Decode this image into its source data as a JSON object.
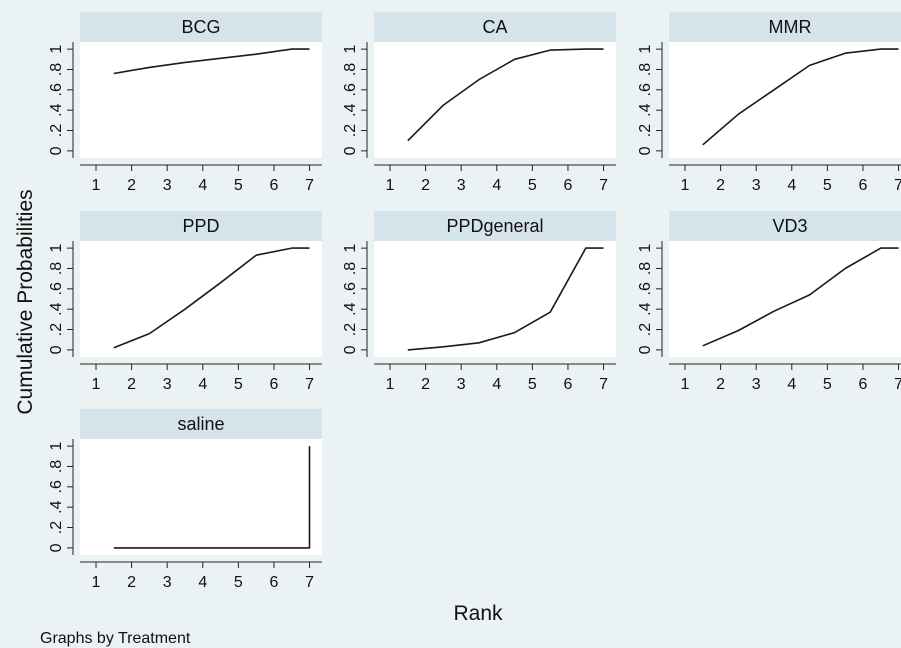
{
  "chart_data": {
    "type": "line",
    "ylabel": "Cumulative Probabilities",
    "xlabel": "Rank",
    "note": "Graphs by Treatment",
    "x_ticks": [
      "1",
      "2",
      "3",
      "4",
      "5",
      "6",
      "7"
    ],
    "y_ticks": [
      "0",
      ".2",
      ".4",
      ".6",
      ".8",
      "1"
    ],
    "xlim": [
      0.55,
      7.35
    ],
    "ylim": [
      -0.07,
      1.07
    ],
    "panels": [
      {
        "title": "BCG",
        "x": [
          1.5,
          2.5,
          3.5,
          4.5,
          5.5,
          6.5,
          7
        ],
        "y": [
          0.76,
          0.82,
          0.87,
          0.91,
          0.95,
          1.0,
          1.0
        ]
      },
      {
        "title": "CA",
        "x": [
          1.5,
          2.5,
          3.5,
          4.5,
          5.5,
          6.5,
          7
        ],
        "y": [
          0.1,
          0.45,
          0.7,
          0.9,
          0.99,
          1.0,
          1.0
        ]
      },
      {
        "title": "MMR",
        "x": [
          1.5,
          2.5,
          3.5,
          4.5,
          5.5,
          6.5,
          7
        ],
        "y": [
          0.06,
          0.36,
          0.6,
          0.84,
          0.96,
          1.0,
          1.0
        ]
      },
      {
        "title": "PPD",
        "x": [
          1.5,
          2.5,
          3.5,
          4.5,
          5.5,
          6.5,
          7
        ],
        "y": [
          0.02,
          0.16,
          0.4,
          0.66,
          0.93,
          1.0,
          1.0
        ]
      },
      {
        "title": "PPDgeneral",
        "x": [
          1.5,
          2.5,
          3.5,
          4.5,
          5.5,
          6.5,
          7
        ],
        "y": [
          0.0,
          0.03,
          0.07,
          0.17,
          0.37,
          1.0,
          1.0
        ]
      },
      {
        "title": "VD3",
        "x": [
          1.5,
          2.5,
          3.5,
          4.5,
          5.5,
          6.5,
          7
        ],
        "y": [
          0.04,
          0.19,
          0.38,
          0.54,
          0.8,
          1.0,
          1.0
        ]
      },
      {
        "title": "saline",
        "x": [
          1.5,
          2.5,
          3.5,
          4.5,
          5.5,
          6.5,
          7,
          7
        ],
        "y": [
          0.0,
          0.0,
          0.0,
          0.0,
          0.0,
          0.0,
          0.0,
          1.0
        ]
      }
    ],
    "colors": {
      "background": "#eaf2f3",
      "plot": "#ffffff",
      "title_strip": "#d5e3ea",
      "line": "#1a1a1a"
    },
    "grid": false,
    "legend": "none"
  }
}
